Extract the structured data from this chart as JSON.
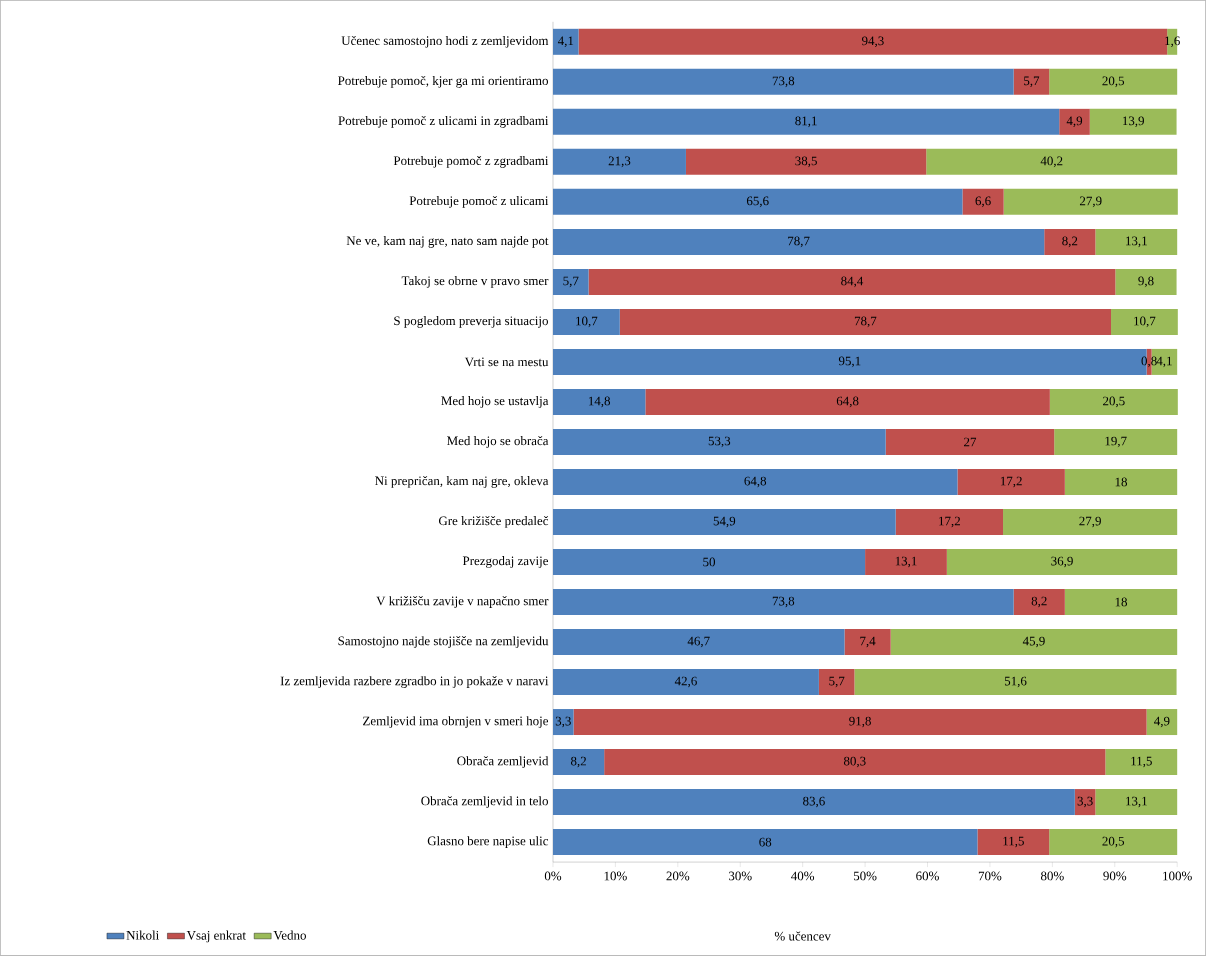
{
  "chart_data": {
    "type": "bar",
    "orientation": "horizontal",
    "stacked": true,
    "xlabel": "% učencev",
    "legend": "bottom left",
    "categories": [
      "Učenec samostojno hodi z zemljevidom",
      "Potrebuje pomoč, kjer ga mi orientiramo",
      "Potrebuje pomoč z ulicami in zgradbami",
      "Potrebuje pomoč z zgradbami",
      "Potrebuje pomoč z ulicami",
      "Ne ve, kam naj gre, nato sam najde pot",
      "Takoj se obrne v pravo smer",
      "S pogledom preverja situacijo",
      "Vrti se na mestu",
      "Med hojo se ustavlja",
      "Med hojo se obrača",
      "Ni prepričan, kam naj gre, okleva",
      "Gre križišče predaleč",
      "Prezgodaj zavije",
      "V križišču zavije v napačno smer",
      "Samostojno najde stojišče na zemljevidu",
      "Iz zemljevida razbere zgradbo in jo pokaže v naravi",
      "Zemljevid ima obrnjen v smeri hoje",
      "Obrača zemljevid",
      "Obrača zemljevid in telo",
      "Glasno bere napise ulic"
    ],
    "xlim": [
      0,
      100
    ],
    "xticks": [
      {
        "value": 0,
        "label": "0%"
      },
      {
        "value": 10,
        "label": "10%"
      },
      {
        "value": 20,
        "label": "20%"
      },
      {
        "value": 30,
        "label": "30%"
      },
      {
        "value": 40,
        "label": "40%"
      },
      {
        "value": 50,
        "label": "50%"
      },
      {
        "value": 60,
        "label": "60%"
      },
      {
        "value": 70,
        "label": "70%"
      },
      {
        "value": 80,
        "label": "80%"
      },
      {
        "value": 90,
        "label": "90%"
      },
      {
        "value": 100,
        "label": "100%"
      }
    ],
    "series": [
      {
        "name": "Nikoli",
        "color": "#4f81bd",
        "values": [
          4.1,
          73.8,
          81.1,
          21.3,
          65.6,
          78.7,
          5.7,
          10.7,
          95.1,
          14.8,
          53.3,
          64.8,
          54.9,
          50,
          73.8,
          46.7,
          42.6,
          3.3,
          8.2,
          83.6,
          68
        ],
        "value_labels": [
          "4,1",
          "73,8",
          "81,1",
          "21,3",
          "65,6",
          "78,7",
          "5,7",
          "10,7",
          "95,1",
          "14,8",
          "53,3",
          "64,8",
          "54,9",
          "50",
          "73,8",
          "46,7",
          "42,6",
          "3,3",
          "8,2",
          "83,6",
          "68"
        ]
      },
      {
        "name": "Vsaj enkrat",
        "color": "#c0504d",
        "values": [
          94.3,
          5.7,
          4.9,
          38.5,
          6.6,
          8.2,
          84.4,
          78.7,
          0.8,
          64.8,
          27,
          17.2,
          17.2,
          13.1,
          8.2,
          7.4,
          5.7,
          91.8,
          80.3,
          3.3,
          11.5
        ],
        "value_labels": [
          "94,3",
          "5,7",
          "4,9",
          "38,5",
          "6,6",
          "8,2",
          "84,4",
          "78,7",
          "0,8",
          "64,8",
          "27",
          "17,2",
          "17,2",
          "13,1",
          "8,2",
          "7,4",
          "5,7",
          "91,8",
          "80,3",
          "3,3",
          "11,5"
        ]
      },
      {
        "name": "Vedno",
        "color": "#9bbb59",
        "values": [
          1.6,
          20.5,
          13.9,
          40.2,
          27.9,
          13.1,
          9.8,
          10.7,
          4.1,
          20.5,
          19.7,
          18,
          27.9,
          36.9,
          18,
          45.9,
          51.6,
          4.9,
          11.5,
          13.1,
          20.5
        ],
        "value_labels": [
          "1,6",
          "20,5",
          "13,9",
          "40,2",
          "27,9",
          "13,1",
          "9,8",
          "10,7",
          "4,1",
          "20,5",
          "19,7",
          "18",
          "27,9",
          "36,9",
          "18",
          "45,9",
          "51,6",
          "4,9",
          "11,5",
          "13,1",
          "20,5"
        ]
      }
    ]
  }
}
